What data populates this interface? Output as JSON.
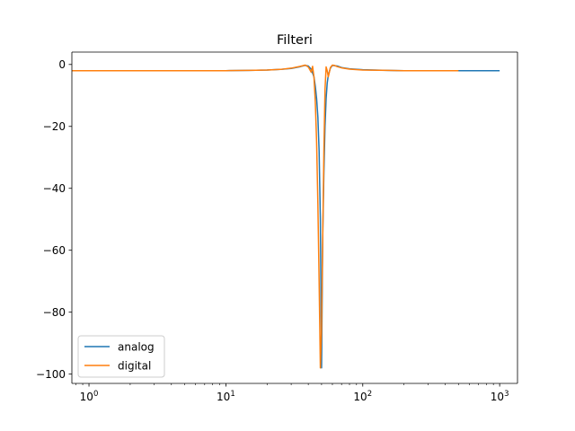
{
  "chart_data": {
    "type": "line",
    "title": "Filteri",
    "xlabel": "",
    "ylabel": "",
    "xscale": "log",
    "xlim": [
      0.75,
      1350
    ],
    "ylim": [
      -103,
      4
    ],
    "grid": false,
    "legend": "lower-left",
    "xticks": [
      {
        "value": 1,
        "label": "10⁰"
      },
      {
        "value": 10,
        "label": "10¹"
      },
      {
        "value": 100,
        "label": "10²"
      },
      {
        "value": 1000,
        "label": "10³"
      }
    ],
    "yticks": [
      {
        "value": 0,
        "label": "0"
      },
      {
        "value": -20,
        "label": "−20"
      },
      {
        "value": -40,
        "label": "−40"
      },
      {
        "value": -60,
        "label": "−60"
      },
      {
        "value": -80,
        "label": "−80"
      },
      {
        "value": -100,
        "label": "−100"
      }
    ],
    "series": [
      {
        "name": "analog",
        "color": "#1f77b4",
        "x": [
          1,
          2,
          5,
          10,
          15,
          20,
          25,
          30,
          35,
          38,
          40,
          42,
          44,
          45,
          46,
          47,
          48,
          49,
          50,
          51,
          52,
          53,
          54,
          55,
          56,
          58,
          60,
          65,
          70,
          80,
          100,
          150,
          200,
          300,
          500,
          700,
          1000
        ],
        "y": [
          -2.0,
          -2.0,
          -2.0,
          -2.0,
          -1.9,
          -1.8,
          -1.6,
          -1.3,
          -0.7,
          -0.3,
          -0.5,
          -1.5,
          -4,
          -7,
          -11,
          -17,
          -28,
          -50,
          -98,
          -55,
          -35,
          -20,
          -11,
          -6,
          -3.5,
          -1.2,
          -0.3,
          -0.5,
          -1.0,
          -1.4,
          -1.7,
          -1.9,
          -2.0,
          -2.0,
          -2.0,
          -2.0,
          -2.0
        ]
      },
      {
        "name": "digital",
        "color": "#ff7f0e",
        "x": [
          0.7,
          1,
          2,
          5,
          10,
          15,
          20,
          25,
          30,
          35,
          38,
          40,
          42,
          43,
          44,
          45,
          46,
          47,
          48,
          49,
          50,
          51,
          52,
          53,
          54,
          55,
          56,
          57,
          58,
          60,
          62,
          65,
          70,
          80,
          100,
          150,
          200,
          300,
          500
        ],
        "y": [
          -2.0,
          -2.0,
          -2.0,
          -2.0,
          -2.0,
          -1.9,
          -1.8,
          -1.6,
          -1.2,
          -0.6,
          -0.2,
          -0.8,
          -2.5,
          -0.6,
          -4,
          -12,
          -25,
          -45,
          -70,
          -98,
          -85,
          -55,
          -28,
          -8,
          -0.8,
          -2,
          -4,
          -2.5,
          -1.0,
          -0.2,
          -0.3,
          -0.7,
          -1.1,
          -1.5,
          -1.8,
          -1.9,
          -2.0,
          -2.0,
          -2.0
        ]
      }
    ]
  }
}
